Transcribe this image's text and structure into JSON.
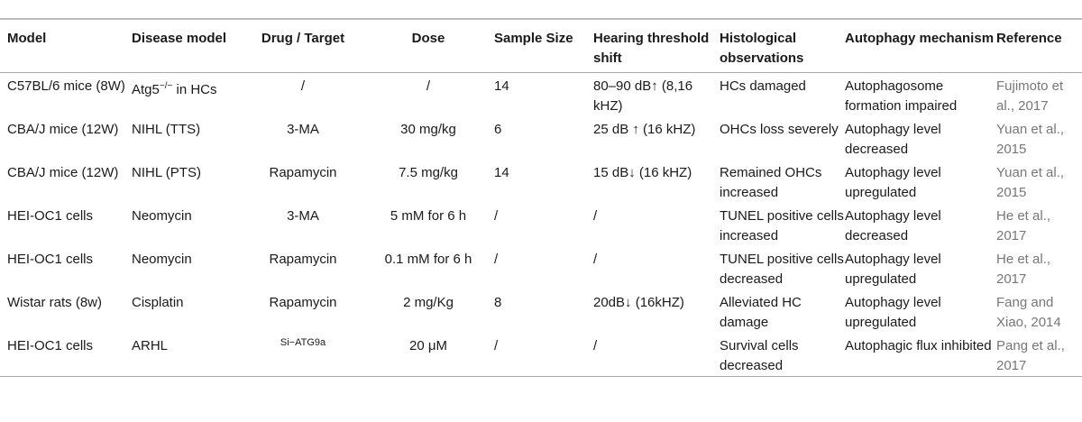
{
  "header": {
    "model": "Model",
    "disease_model": "Disease model",
    "drug_target": "Drug / Target",
    "dose": "Dose",
    "sample_size": "Sample Size",
    "hearing": "Hearing threshold shift",
    "histology": "Histological observations",
    "autophagy": "Autophagy mechanism",
    "reference": "Reference"
  },
  "rows": [
    {
      "model": "C57BL/6 mice (8W)",
      "disease_main": "Atg5",
      "disease_sup": "−/−",
      "disease_rest": " in HCs",
      "drug": "/",
      "dose": "/",
      "sample": "14",
      "hearing": "80–90 dB↑ (8,16 kHZ)",
      "histology": "HCs damaged",
      "autophagy": "Autophagosome formation impaired",
      "reference": "Fujimoto et al., 2017"
    },
    {
      "model": "CBA/J mice (12W)",
      "disease": "NIHL (TTS)",
      "drug": "3-MA",
      "dose": "30 mg/kg",
      "sample": "6",
      "hearing": "25 dB ↑ (16 kHZ)",
      "histology": "OHCs loss severely",
      "autophagy": "Autophagy level decreased",
      "reference": "Yuan et al., 2015"
    },
    {
      "model": "CBA/J mice (12W)",
      "disease": "NIHL (PTS)",
      "drug": "Rapamycin",
      "dose": "7.5 mg/kg",
      "sample": "14",
      "hearing": "15 dB↓ (16 kHZ)",
      "histology": "Remained OHCs increased",
      "autophagy": "Autophagy level upregulated",
      "reference": "Yuan et al., 2015"
    },
    {
      "model": "HEI-OC1 cells",
      "disease": "Neomycin",
      "drug": "3-MA",
      "dose": "5 mM for 6 h",
      "sample": "/",
      "hearing": "/",
      "histology": "TUNEL positive cells increased",
      "autophagy": "Autophagy level decreased",
      "reference": "He et al., 2017"
    },
    {
      "model": "HEI-OC1 cells",
      "disease": "Neomycin",
      "drug": "Rapamycin",
      "dose": "0.1 mM for 6 h",
      "sample": "/",
      "hearing": "/",
      "histology": "TUNEL positive cells decreased",
      "autophagy": "Autophagy level upregulated",
      "reference": "He et al., 2017"
    },
    {
      "model": "Wistar rats (8w)",
      "disease": "Cisplatin",
      "drug": "Rapamycin",
      "dose": "2 mg/Kg",
      "sample": "8",
      "hearing": "20dB↓ (16kHZ)",
      "histology": "Alleviated HC damage",
      "autophagy": "Autophagy level upregulated",
      "reference": "Fang and Xiao, 2014"
    },
    {
      "model": "HEI-OC1 cells",
      "disease": "ARHL",
      "drug": "Si−ATG9a",
      "dose": "20 μM",
      "sample": "/",
      "hearing": "/",
      "histology": "Survival cells decreased",
      "autophagy": "Autophagic flux inhibited",
      "reference": "Pang et al., 2017"
    }
  ]
}
